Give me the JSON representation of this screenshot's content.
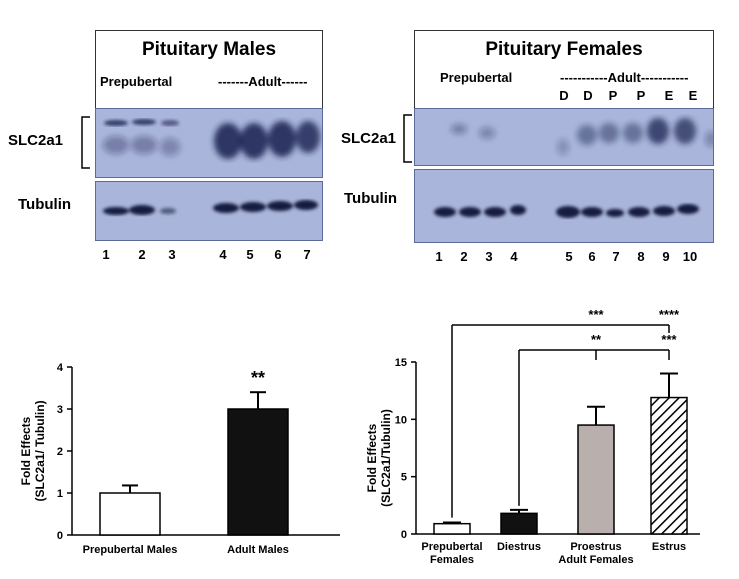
{
  "males_panel": {
    "title": "Pituitary Males",
    "prepubertal_label": "Prepubertal",
    "adult_label": "-------Adult------",
    "row_label_top": "SLC2a1",
    "row_label_bottom": "Tubulin",
    "lanes": [
      "1",
      "2",
      "3",
      "4",
      "5",
      "6",
      "7"
    ]
  },
  "females_panel": {
    "title": "Pituitary Females",
    "prepubertal_label": "Prepubertal",
    "adult_label": "-----------Adult-----------",
    "stages": [
      "D",
      "D",
      "P",
      "P",
      "E",
      "E"
    ],
    "row_label_top": "SLC2a1",
    "row_label_bottom": "Tubulin",
    "lanes": [
      "1",
      "2",
      "3",
      "4",
      "5",
      "6",
      "7",
      "8",
      "9",
      "10"
    ]
  },
  "colors": {
    "blot_bg": "#aab7dc",
    "band": "#16204a",
    "bar_white": "#ffffff",
    "bar_black": "#111111",
    "bar_gray": "#b9b0ae"
  },
  "chart_data": [
    {
      "type": "bar",
      "ylabel": "Fold Effects\n(SLC2a1/ Tubulin)",
      "ylabel_lines": [
        "Fold Effects",
        "(SLC2a1/ Tubulin)"
      ],
      "categories": [
        "Prepubertal Males",
        "Adult Males"
      ],
      "values": [
        1.0,
        3.0
      ],
      "errors": [
        0.18,
        0.4
      ],
      "ylim": [
        0,
        4
      ],
      "yticks": [
        "0",
        "1",
        "2",
        "3",
        "4"
      ],
      "annotations": [
        "**"
      ]
    },
    {
      "type": "bar",
      "ylabel": "Fold Effects\n(SLC2a1/Tubulin)",
      "ylabel_lines": [
        "Fold Effects",
        "(SLC2a1/Tubulin)"
      ],
      "categories": [
        "Prepubertal Females",
        "Diestrus",
        "Proestrus",
        "Estrus"
      ],
      "category_lines": [
        [
          "Prepubertal",
          "Females"
        ],
        [
          "Diestrus"
        ],
        [
          "Proestrus"
        ],
        [
          "Estrus"
        ]
      ],
      "group_label": "Adult Females",
      "values": [
        0.9,
        1.8,
        9.5,
        11.9
      ],
      "errors": [
        0.1,
        0.3,
        1.6,
        2.1
      ],
      "ylim": [
        0,
        15
      ],
      "yticks": [
        "0",
        "5",
        "10",
        "15"
      ],
      "significance": [
        "***",
        "****",
        "**",
        "***"
      ]
    }
  ]
}
